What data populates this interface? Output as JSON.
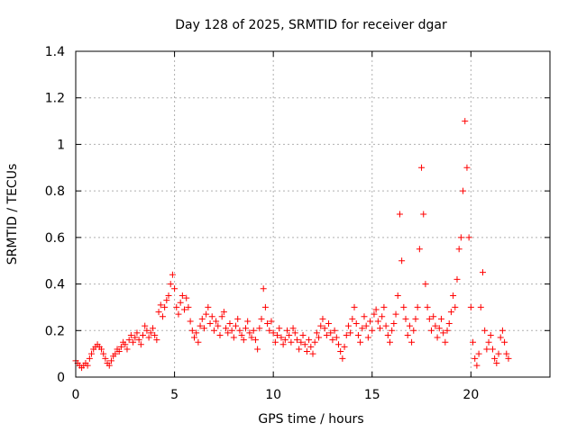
{
  "chart_data": {
    "type": "scatter",
    "title": "Day 128 of 2025, SRMTID for receiver dgar",
    "xlabel": "GPS time / hours",
    "ylabel": "SRMTID / TECUs",
    "xlim": [
      0,
      24
    ],
    "ylim": [
      0,
      1.4
    ],
    "xticks": [
      0,
      5,
      10,
      15,
      20
    ],
    "yticks": [
      0,
      0.2,
      0.4,
      0.6,
      0.8,
      1,
      1.2,
      1.4
    ],
    "xtick_labels": [
      "0",
      "5",
      "10",
      "15",
      "20"
    ],
    "ytick_labels": [
      "0",
      "0.2",
      "0.4",
      "0.6",
      "0.8",
      "1",
      "1.2",
      "1.4"
    ],
    "grid": true,
    "marker": "+",
    "color": "#ff0000",
    "series": [
      {
        "name": "SRMTID",
        "points": [
          [
            0.0,
            0.07
          ],
          [
            0.1,
            0.06
          ],
          [
            0.2,
            0.05
          ],
          [
            0.3,
            0.04
          ],
          [
            0.4,
            0.05
          ],
          [
            0.5,
            0.06
          ],
          [
            0.6,
            0.05
          ],
          [
            0.7,
            0.08
          ],
          [
            0.8,
            0.1
          ],
          [
            0.9,
            0.12
          ],
          [
            1.0,
            0.13
          ],
          [
            1.1,
            0.14
          ],
          [
            1.2,
            0.13
          ],
          [
            1.3,
            0.12
          ],
          [
            1.4,
            0.1
          ],
          [
            1.5,
            0.08
          ],
          [
            1.6,
            0.06
          ],
          [
            1.7,
            0.05
          ],
          [
            1.8,
            0.07
          ],
          [
            1.9,
            0.09
          ],
          [
            2.0,
            0.1
          ],
          [
            2.1,
            0.12
          ],
          [
            2.2,
            0.11
          ],
          [
            2.3,
            0.13
          ],
          [
            2.4,
            0.15
          ],
          [
            2.5,
            0.14
          ],
          [
            2.6,
            0.12
          ],
          [
            2.7,
            0.16
          ],
          [
            2.8,
            0.18
          ],
          [
            2.9,
            0.15
          ],
          [
            3.0,
            0.17
          ],
          [
            3.1,
            0.19
          ],
          [
            3.2,
            0.16
          ],
          [
            3.3,
            0.14
          ],
          [
            3.4,
            0.18
          ],
          [
            3.5,
            0.22
          ],
          [
            3.6,
            0.2
          ],
          [
            3.7,
            0.17
          ],
          [
            3.8,
            0.19
          ],
          [
            3.9,
            0.21
          ],
          [
            4.0,
            0.18
          ],
          [
            4.1,
            0.16
          ],
          [
            4.2,
            0.28
          ],
          [
            4.3,
            0.31
          ],
          [
            4.4,
            0.26
          ],
          [
            4.5,
            0.3
          ],
          [
            4.6,
            0.33
          ],
          [
            4.7,
            0.35
          ],
          [
            4.8,
            0.4
          ],
          [
            4.9,
            0.44
          ],
          [
            5.0,
            0.38
          ],
          [
            5.1,
            0.3
          ],
          [
            5.2,
            0.27
          ],
          [
            5.3,
            0.32
          ],
          [
            5.4,
            0.35
          ],
          [
            5.5,
            0.29
          ],
          [
            5.6,
            0.34
          ],
          [
            5.7,
            0.3
          ],
          [
            5.8,
            0.24
          ],
          [
            5.9,
            0.2
          ],
          [
            6.0,
            0.17
          ],
          [
            6.1,
            0.19
          ],
          [
            6.2,
            0.15
          ],
          [
            6.3,
            0.22
          ],
          [
            6.4,
            0.25
          ],
          [
            6.5,
            0.21
          ],
          [
            6.6,
            0.27
          ],
          [
            6.7,
            0.3
          ],
          [
            6.8,
            0.23
          ],
          [
            6.9,
            0.26
          ],
          [
            7.0,
            0.2
          ],
          [
            7.1,
            0.24
          ],
          [
            7.2,
            0.22
          ],
          [
            7.3,
            0.18
          ],
          [
            7.4,
            0.26
          ],
          [
            7.5,
            0.28
          ],
          [
            7.6,
            0.21
          ],
          [
            7.7,
            0.19
          ],
          [
            7.8,
            0.23
          ],
          [
            7.9,
            0.2
          ],
          [
            8.0,
            0.17
          ],
          [
            8.1,
            0.22
          ],
          [
            8.2,
            0.25
          ],
          [
            8.3,
            0.2
          ],
          [
            8.4,
            0.18
          ],
          [
            8.5,
            0.16
          ],
          [
            8.6,
            0.21
          ],
          [
            8.7,
            0.24
          ],
          [
            8.8,
            0.19
          ],
          [
            8.9,
            0.17
          ],
          [
            9.0,
            0.2
          ],
          [
            9.1,
            0.16
          ],
          [
            9.2,
            0.12
          ],
          [
            9.3,
            0.21
          ],
          [
            9.4,
            0.25
          ],
          [
            9.5,
            0.38
          ],
          [
            9.6,
            0.3
          ],
          [
            9.7,
            0.23
          ],
          [
            9.8,
            0.2
          ],
          [
            9.9,
            0.24
          ],
          [
            10.0,
            0.19
          ],
          [
            10.1,
            0.15
          ],
          [
            10.2,
            0.18
          ],
          [
            10.3,
            0.21
          ],
          [
            10.4,
            0.17
          ],
          [
            10.5,
            0.14
          ],
          [
            10.6,
            0.16
          ],
          [
            10.7,
            0.2
          ],
          [
            10.8,
            0.18
          ],
          [
            10.9,
            0.15
          ],
          [
            11.0,
            0.21
          ],
          [
            11.1,
            0.19
          ],
          [
            11.2,
            0.16
          ],
          [
            11.3,
            0.12
          ],
          [
            11.4,
            0.15
          ],
          [
            11.5,
            0.18
          ],
          [
            11.6,
            0.14
          ],
          [
            11.7,
            0.11
          ],
          [
            11.8,
            0.16
          ],
          [
            11.9,
            0.13
          ],
          [
            12.0,
            0.1
          ],
          [
            12.1,
            0.15
          ],
          [
            12.2,
            0.19
          ],
          [
            12.3,
            0.17
          ],
          [
            12.4,
            0.22
          ],
          [
            12.5,
            0.25
          ],
          [
            12.6,
            0.21
          ],
          [
            12.7,
            0.18
          ],
          [
            12.8,
            0.23
          ],
          [
            12.9,
            0.19
          ],
          [
            13.0,
            0.16
          ],
          [
            13.1,
            0.2
          ],
          [
            13.2,
            0.17
          ],
          [
            13.3,
            0.14
          ],
          [
            13.4,
            0.11
          ],
          [
            13.5,
            0.08
          ],
          [
            13.6,
            0.13
          ],
          [
            13.7,
            0.18
          ],
          [
            13.8,
            0.22
          ],
          [
            13.9,
            0.19
          ],
          [
            14.0,
            0.25
          ],
          [
            14.1,
            0.3
          ],
          [
            14.2,
            0.23
          ],
          [
            14.3,
            0.18
          ],
          [
            14.4,
            0.15
          ],
          [
            14.5,
            0.21
          ],
          [
            14.6,
            0.26
          ],
          [
            14.7,
            0.22
          ],
          [
            14.8,
            0.17
          ],
          [
            14.9,
            0.24
          ],
          [
            15.0,
            0.2
          ],
          [
            15.1,
            0.27
          ],
          [
            15.2,
            0.29
          ],
          [
            15.3,
            0.24
          ],
          [
            15.4,
            0.21
          ],
          [
            15.5,
            0.26
          ],
          [
            15.6,
            0.3
          ],
          [
            15.7,
            0.22
          ],
          [
            15.8,
            0.18
          ],
          [
            15.9,
            0.15
          ],
          [
            16.0,
            0.2
          ],
          [
            16.1,
            0.23
          ],
          [
            16.2,
            0.27
          ],
          [
            16.3,
            0.35
          ],
          [
            16.4,
            0.7
          ],
          [
            16.5,
            0.5
          ],
          [
            16.6,
            0.3
          ],
          [
            16.7,
            0.25
          ],
          [
            16.8,
            0.18
          ],
          [
            16.9,
            0.22
          ],
          [
            17.0,
            0.15
          ],
          [
            17.1,
            0.2
          ],
          [
            17.2,
            0.25
          ],
          [
            17.3,
            0.3
          ],
          [
            17.4,
            0.55
          ],
          [
            17.5,
            0.9
          ],
          [
            17.6,
            0.7
          ],
          [
            17.7,
            0.4
          ],
          [
            17.8,
            0.3
          ],
          [
            17.9,
            0.25
          ],
          [
            18.0,
            0.2
          ],
          [
            18.1,
            0.26
          ],
          [
            18.2,
            0.22
          ],
          [
            18.3,
            0.17
          ],
          [
            18.4,
            0.21
          ],
          [
            18.5,
            0.25
          ],
          [
            18.6,
            0.19
          ],
          [
            18.7,
            0.15
          ],
          [
            18.8,
            0.2
          ],
          [
            18.9,
            0.23
          ],
          [
            19.0,
            0.28
          ],
          [
            19.1,
            0.35
          ],
          [
            19.2,
            0.3
          ],
          [
            19.3,
            0.42
          ],
          [
            19.4,
            0.55
          ],
          [
            19.5,
            0.6
          ],
          [
            19.6,
            0.8
          ],
          [
            19.7,
            1.1
          ],
          [
            19.8,
            0.9
          ],
          [
            19.9,
            0.6
          ],
          [
            20.0,
            0.3
          ],
          [
            20.1,
            0.15
          ],
          [
            20.2,
            0.08
          ],
          [
            20.3,
            0.05
          ],
          [
            20.4,
            0.1
          ],
          [
            20.5,
            0.3
          ],
          [
            20.6,
            0.45
          ],
          [
            20.7,
            0.2
          ],
          [
            20.8,
            0.12
          ],
          [
            20.9,
            0.15
          ],
          [
            21.0,
            0.18
          ],
          [
            21.1,
            0.12
          ],
          [
            21.2,
            0.08
          ],
          [
            21.3,
            0.06
          ],
          [
            21.4,
            0.1
          ],
          [
            21.5,
            0.17
          ],
          [
            21.6,
            0.2
          ],
          [
            21.7,
            0.15
          ],
          [
            21.8,
            0.1
          ],
          [
            21.9,
            0.08
          ]
        ]
      }
    ]
  }
}
